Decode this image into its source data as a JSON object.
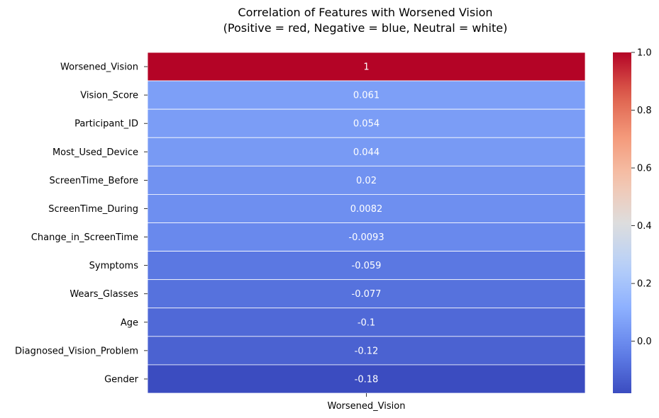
{
  "chart_data": {
    "type": "heatmap",
    "title_line1": "Correlation of Features with Worsened Vision",
    "title_line2": "(Positive = red, Negative = blue, Neutral = white)",
    "x_categories": [
      "Worsened_Vision"
    ],
    "rows": [
      {
        "label": "Worsened_Vision",
        "value": 1.0,
        "annot": "1"
      },
      {
        "label": "Vision_Score",
        "value": 0.061,
        "annot": "0.061"
      },
      {
        "label": "Participant_ID",
        "value": 0.054,
        "annot": "0.054"
      },
      {
        "label": "Most_Used_Device",
        "value": 0.044,
        "annot": "0.044"
      },
      {
        "label": "ScreenTime_Before",
        "value": 0.02,
        "annot": "0.02"
      },
      {
        "label": "ScreenTime_During",
        "value": 0.0082,
        "annot": "0.0082"
      },
      {
        "label": "Change_in_ScreenTime",
        "value": -0.0093,
        "annot": "-0.0093"
      },
      {
        "label": "Symptoms",
        "value": -0.059,
        "annot": "-0.059"
      },
      {
        "label": "Wears_Glasses",
        "value": -0.077,
        "annot": "-0.077"
      },
      {
        "label": "Age",
        "value": -0.1,
        "annot": "-0.1"
      },
      {
        "label": "Diagnosed_Vision_Problem",
        "value": -0.12,
        "annot": "-0.12"
      },
      {
        "label": "Gender",
        "value": -0.18,
        "annot": "-0.18"
      }
    ],
    "colormap": "coolwarm",
    "colorbar": {
      "min": -0.18,
      "max": 1.0,
      "ticks": [
        0.0,
        0.2,
        0.4,
        0.6,
        0.8,
        1.0
      ],
      "tick_labels": [
        "0.0",
        "0.2",
        "0.4",
        "0.6",
        "0.8",
        "1.0"
      ]
    },
    "colors": {
      "annotation_text": "#ffffff",
      "cell_border": "#ffffff",
      "axis_text": "#000000"
    }
  }
}
